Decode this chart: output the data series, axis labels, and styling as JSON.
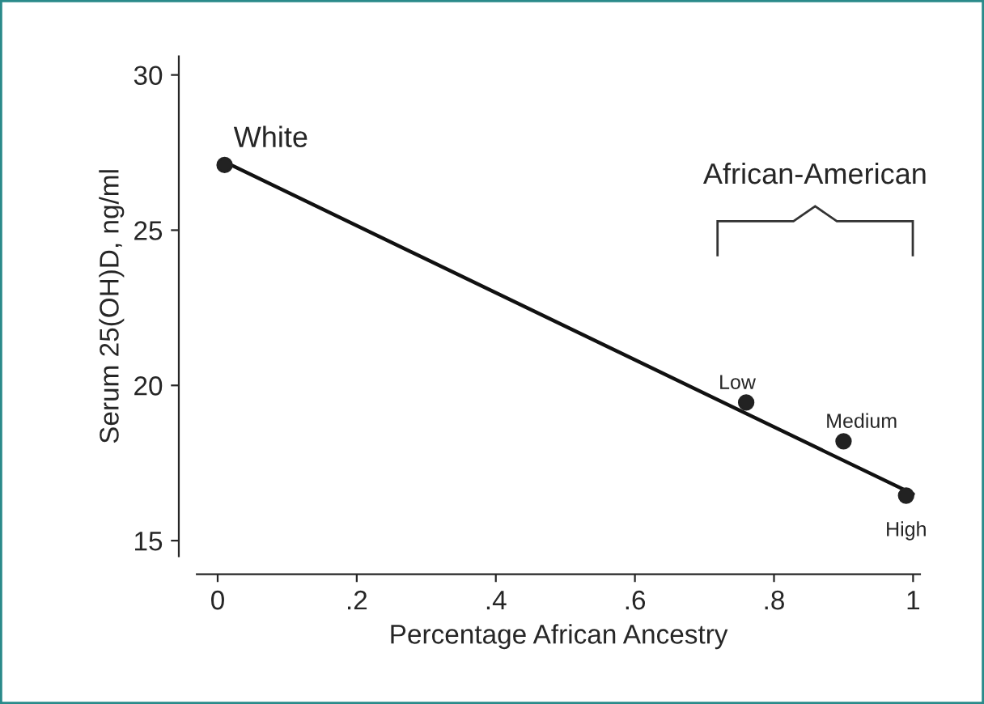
{
  "chart_data": {
    "type": "scatter",
    "xlabel": "Percentage African Ancestry",
    "ylabel": "Serum 25(OH)D, ng/ml",
    "series": [
      {
        "type": "line",
        "color": "#111111",
        "x": [
          0.01,
          1.0
        ],
        "values": [
          27.2,
          16.5
        ],
        "marker": "none",
        "line_style": "solid"
      },
      {
        "color": "#222222",
        "x": [
          0.01,
          0.76,
          0.9,
          0.99
        ],
        "values": [
          27.1,
          19.45,
          18.2,
          16.45
        ],
        "marker": "circle"
      }
    ],
    "annotations": [
      {
        "text": "White",
        "x": 0.01,
        "y": 27.1
      },
      {
        "text": "Low",
        "x": 0.76,
        "y": 19.45
      },
      {
        "text": "Medium",
        "x": 0.9,
        "y": 18.2
      },
      {
        "text": "High",
        "x": 0.99,
        "y": 16.45
      },
      "African-American"
    ],
    "xlim": [
      -0.03,
      1.01
    ],
    "ylim": [
      14.5,
      30.6
    ],
    "xticks": [
      {
        "value": 0,
        "label": "0"
      },
      {
        "value": 0.2,
        "label": ".2"
      },
      {
        "value": 0.4,
        "label": ".4"
      },
      {
        "value": 0.6,
        "label": ".6"
      },
      {
        "value": 0.8,
        "label": ".8"
      },
      {
        "value": 1,
        "label": "1"
      }
    ],
    "yticks": [
      15,
      20,
      25,
      30
    ],
    "grid": false,
    "legend": false
  }
}
